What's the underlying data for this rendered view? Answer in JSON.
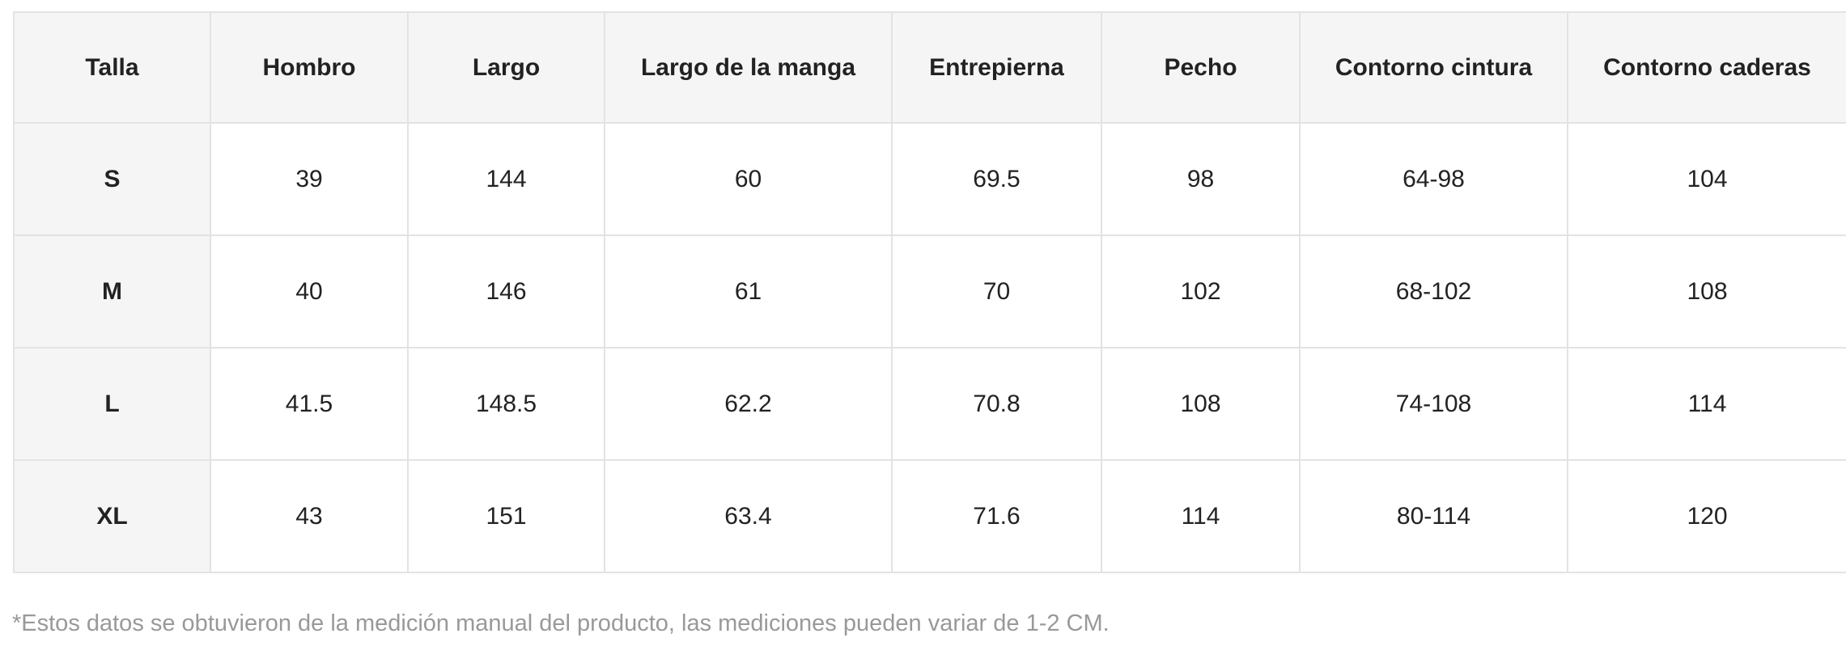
{
  "table": {
    "header": [
      "Talla",
      "Hombro",
      "Largo",
      "Largo de la manga",
      "Entrepierna",
      "Pecho",
      "Contorno cintura",
      "Contorno caderas"
    ],
    "rows": [
      [
        "S",
        "39",
        "144",
        "60",
        "69.5",
        "98",
        "64-98",
        "104"
      ],
      [
        "M",
        "40",
        "146",
        "61",
        "70",
        "102",
        "68-102",
        "108"
      ],
      [
        "L",
        "41.5",
        "148.5",
        "62.2",
        "70.8",
        "108",
        "74-108",
        "114"
      ],
      [
        "XL",
        "43",
        "151",
        "63.4",
        "71.6",
        "114",
        "80-114",
        "120"
      ]
    ]
  },
  "footnote": "*Estos datos se obtuvieron de la medición manual del producto, las mediciones pueden variar de 1-2 CM."
}
